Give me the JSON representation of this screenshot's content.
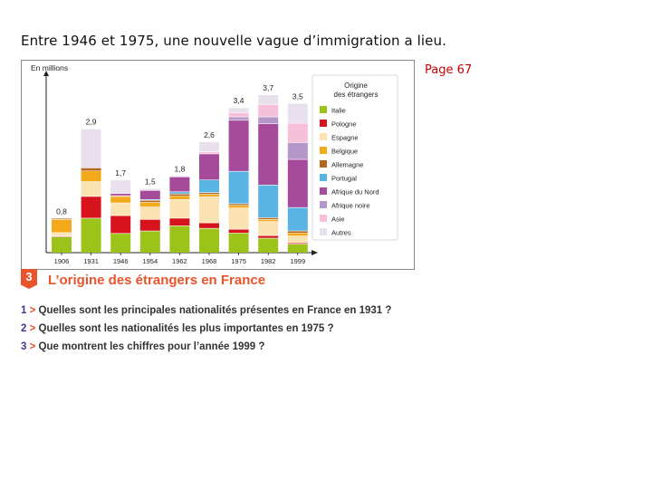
{
  "slide": {
    "title": "Entre 1946 et 1975, une nouvelle vague d’immigration a lieu.",
    "page_ref": "Page 67"
  },
  "figure": {
    "number": "3",
    "title": "L’origine des étrangers en France"
  },
  "questions": [
    {
      "num": "1",
      "arrow": ">",
      "text": "Quelles sont les principales nationalités présentes en France en 1931 ?"
    },
    {
      "num": "2",
      "arrow": ">",
      "text": "Quelles sont les nationalités les plus importantes en 1975 ?"
    },
    {
      "num": "3",
      "arrow": ">",
      "text": "Que montrent les chiffres pour l’année 1999 ?"
    }
  ],
  "chart_data": {
    "type": "bar",
    "stacked": true,
    "ylabel": "En millions",
    "ylim": [
      0,
      4
    ],
    "legend_title": "Origine des étrangers",
    "legend_position": "top-right",
    "categories": [
      "1906",
      "1931",
      "1946",
      "1954",
      "1962",
      "1968",
      "1975",
      "1982",
      "1999"
    ],
    "totals": [
      0.8,
      2.9,
      1.7,
      1.5,
      1.8,
      2.6,
      3.4,
      3.7,
      3.5
    ],
    "total_labels": [
      "0,8",
      "2,9",
      "1,7",
      "1,5",
      "1,8",
      "2,6",
      "3,4",
      "3,7",
      "3,5"
    ],
    "series": [
      {
        "name": "Italie",
        "color": "#9cc31a",
        "values": [
          0.37,
          0.81,
          0.45,
          0.51,
          0.63,
          0.57,
          0.46,
          0.34,
          0.2
        ]
      },
      {
        "name": "Pologne",
        "color": "#d7141e",
        "values": [
          0.02,
          0.51,
          0.42,
          0.27,
          0.18,
          0.13,
          0.09,
          0.06,
          0.03
        ]
      },
      {
        "name": "Espagne",
        "color": "#fbe2b2",
        "values": [
          0.08,
          0.35,
          0.3,
          0.29,
          0.44,
          0.61,
          0.5,
          0.33,
          0.16
        ]
      },
      {
        "name": "Belgique",
        "color": "#f3a91a",
        "values": [
          0.31,
          0.25,
          0.15,
          0.11,
          0.08,
          0.06,
          0.06,
          0.05,
          0.07
        ]
      },
      {
        "name": "Allemagne",
        "color": "#b5651d",
        "values": [
          0.02,
          0.07,
          0.02,
          0.05,
          0.05,
          0.04,
          0.04,
          0.04,
          0.05
        ]
      },
      {
        "name": "Portugal",
        "color": "#59b4e3",
        "values": [
          0.0,
          0.0,
          0.0,
          0.02,
          0.05,
          0.3,
          0.76,
          0.77,
          0.55
        ]
      },
      {
        "name": "Afrique du Nord",
        "color": "#a64a9b",
        "values": [
          0.0,
          0.0,
          0.05,
          0.21,
          0.35,
          0.61,
          1.2,
          1.44,
          1.13
        ]
      },
      {
        "name": "Afrique noire",
        "color": "#b596c8",
        "values": [
          0.0,
          0.0,
          0.0,
          0.0,
          0.0,
          0.0,
          0.08,
          0.16,
          0.4
        ]
      },
      {
        "name": "Asie",
        "color": "#f6bfda",
        "values": [
          0.0,
          0.0,
          0.0,
          0.0,
          0.0,
          0.05,
          0.1,
          0.29,
          0.45
        ]
      },
      {
        "name": "Autres",
        "color": "#e9e0ee",
        "values": [
          0.0,
          0.91,
          0.31,
          0.04,
          0.02,
          0.23,
          0.11,
          0.22,
          0.46
        ]
      }
    ]
  }
}
